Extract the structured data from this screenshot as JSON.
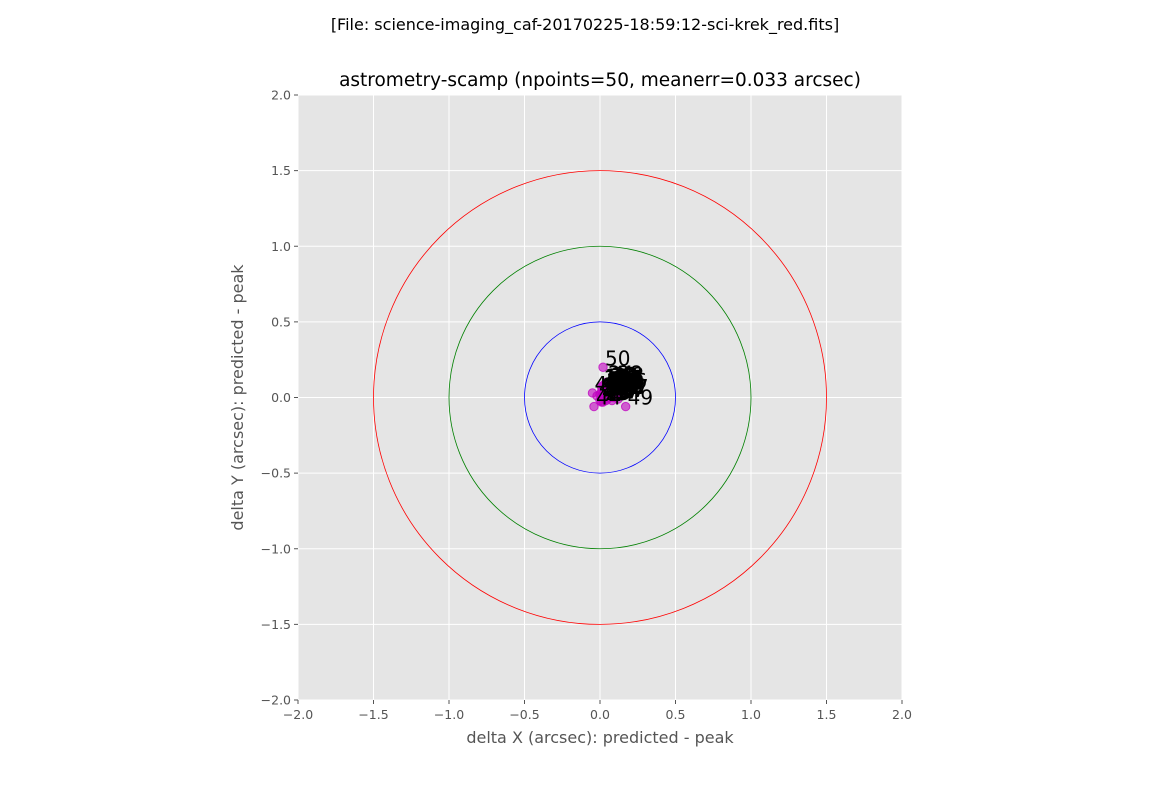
{
  "page": {
    "suptitle": "[File: science-imaging_caf-20170225-18:59:12-sci-krek_red.fits]"
  },
  "chart_data": {
    "type": "scatter",
    "title": "astrometry-scamp (npoints=50, meanerr=0.033 arcsec)",
    "xlabel": "delta X (arcsec): predicted - peak",
    "ylabel": "delta Y (arcsec): predicted - peak",
    "xlim": [
      -2.0,
      2.0
    ],
    "ylim": [
      -2.0,
      2.0
    ],
    "xticks": [
      -2.0,
      -1.5,
      -1.0,
      -0.5,
      0.0,
      0.5,
      1.0,
      1.5,
      2.0
    ],
    "yticks": [
      -2.0,
      -1.5,
      -1.0,
      -0.5,
      0.0,
      0.5,
      1.0,
      1.5,
      2.0
    ],
    "xtick_labels": [
      "−2.0",
      "−1.5",
      "−1.0",
      "−0.5",
      "0.0",
      "0.5",
      "1.0",
      "1.5",
      "2.0"
    ],
    "ytick_labels": [
      "−2.0",
      "−1.5",
      "−1.0",
      "−0.5",
      "0.0",
      "0.5",
      "1.0",
      "1.5",
      "2.0"
    ],
    "grid": true,
    "background_color": "#e5e5e5",
    "grid_color": "#ffffff",
    "point_color": "#bf00bf",
    "circles": [
      {
        "radius": 0.5,
        "color": "#0000ff"
      },
      {
        "radius": 1.0,
        "color": "#008000"
      },
      {
        "radius": 1.5,
        "color": "#ff0000"
      }
    ],
    "points": [
      {
        "id": 1,
        "x": 0.02,
        "y": 0.01
      },
      {
        "id": 2,
        "x": 0.04,
        "y": 0.03
      },
      {
        "id": 3,
        "x": 0.06,
        "y": 0.05
      },
      {
        "id": 4,
        "x": 0.01,
        "y": 0.04
      },
      {
        "id": 5,
        "x": 0.08,
        "y": 0.02
      },
      {
        "id": 6,
        "x": 0.03,
        "y": 0.06
      },
      {
        "id": 7,
        "x": 0.05,
        "y": -0.01
      },
      {
        "id": 8,
        "x": 0.07,
        "y": 0.07
      },
      {
        "id": 9,
        "x": 0.0,
        "y": 0.02
      },
      {
        "id": 10,
        "x": 0.09,
        "y": 0.04
      },
      {
        "id": 11,
        "x": 0.02,
        "y": 0.08
      },
      {
        "id": 12,
        "x": 0.1,
        "y": 0.01
      },
      {
        "id": 13,
        "x": 0.04,
        "y": -0.02
      },
      {
        "id": 14,
        "x": 0.06,
        "y": 0.09
      },
      {
        "id": 15,
        "x": 0.11,
        "y": 0.06
      },
      {
        "id": 16,
        "x": 0.03,
        "y": 0.0
      },
      {
        "id": 17,
        "x": 0.08,
        "y": -0.02
      },
      {
        "id": 18,
        "x": 0.05,
        "y": 0.04
      },
      {
        "id": 19,
        "x": 0.01,
        "y": 0.07
      },
      {
        "id": 20,
        "x": 0.07,
        "y": 0.03
      },
      {
        "id": 21,
        "x": 0.09,
        "y": 0.08
      },
      {
        "id": 22,
        "x": 0.12,
        "y": 0.02
      },
      {
        "id": 23,
        "x": 0.02,
        "y": -0.03
      },
      {
        "id": 24,
        "x": 0.04,
        "y": 0.1
      },
      {
        "id": 25,
        "x": 0.06,
        "y": 0.0
      },
      {
        "id": 26,
        "x": 0.1,
        "y": 0.07
      },
      {
        "id": 27,
        "x": 0.03,
        "y": 0.05
      },
      {
        "id": 28,
        "x": 0.08,
        "y": 0.05
      },
      {
        "id": 29,
        "x": 0.05,
        "y": 0.02
      },
      {
        "id": 30,
        "x": 0.11,
        "y": 0.04
      },
      {
        "id": 31,
        "x": 0.01,
        "y": 0.01
      },
      {
        "id": 32,
        "x": 0.07,
        "y": 0.09
      },
      {
        "id": 33,
        "x": 0.04,
        "y": 0.06
      },
      {
        "id": 34,
        "x": 0.09,
        "y": 0.0
      },
      {
        "id": 35,
        "x": 0.06,
        "y": 0.03
      },
      {
        "id": 36,
        "x": 0.13,
        "y": 0.05
      },
      {
        "id": 37,
        "x": 0.12,
        "y": -0.01
      },
      {
        "id": 38,
        "x": 0.1,
        "y": 0.1
      },
      {
        "id": 39,
        "x": 0.05,
        "y": 0.08
      },
      {
        "id": 40,
        "x": 0.08,
        "y": 0.07
      },
      {
        "id": 41,
        "x": 0.0,
        "y": -0.02
      },
      {
        "id": 42,
        "x": -0.02,
        "y": 0.01
      },
      {
        "id": 43,
        "x": -0.05,
        "y": 0.03
      },
      {
        "id": 44,
        "x": -0.04,
        "y": -0.06
      },
      {
        "id": 45,
        "x": 0.01,
        "y": -0.03
      },
      {
        "id": 46,
        "x": 0.02,
        "y": 0.03
      },
      {
        "id": 47,
        "x": 0.14,
        "y": 0.01
      },
      {
        "id": 48,
        "x": 0.11,
        "y": 0.09
      },
      {
        "id": 49,
        "x": 0.17,
        "y": -0.06
      },
      {
        "id": 50,
        "x": 0.02,
        "y": 0.2
      }
    ]
  }
}
